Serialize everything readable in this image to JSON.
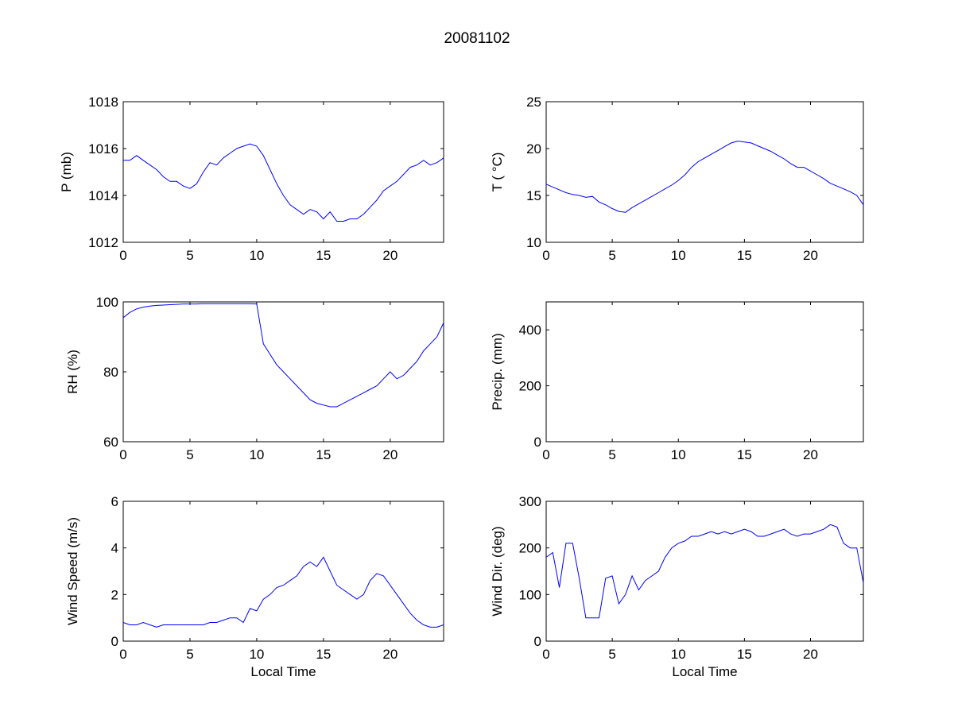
{
  "chart_data": {
    "type": "line",
    "title": "20081102",
    "line_color": "#0000ff",
    "subplots": [
      {
        "id": "pressure",
        "ylabel": "P (mb)",
        "xlabel": "",
        "xlim": [
          0,
          24
        ],
        "ylim": [
          1012,
          1018
        ],
        "xticks": [
          0,
          5,
          10,
          15,
          20
        ],
        "yticks": [
          1012,
          1014,
          1016,
          1018
        ],
        "x_step": 0.5,
        "values": [
          1015.5,
          1015.5,
          1015.7,
          1015.5,
          1015.3,
          1015.1,
          1014.8,
          1014.6,
          1014.6,
          1014.4,
          1014.3,
          1014.5,
          1015.0,
          1015.4,
          1015.3,
          1015.6,
          1015.8,
          1016.0,
          1016.1,
          1016.2,
          1016.1,
          1015.7,
          1015.1,
          1014.5,
          1014.0,
          1013.6,
          1013.4,
          1013.2,
          1013.4,
          1013.3,
          1013.0,
          1013.3,
          1012.9,
          1012.9,
          1013.0,
          1013.0,
          1013.2,
          1013.5,
          1013.8,
          1014.2,
          1014.4,
          1014.6,
          1014.9,
          1015.2,
          1015.3,
          1015.5,
          1015.3,
          1015.4,
          1015.6
        ]
      },
      {
        "id": "temperature",
        "ylabel": "T ( °C)",
        "xlabel": "",
        "xlim": [
          0,
          24
        ],
        "ylim": [
          10,
          25
        ],
        "xticks": [
          0,
          5,
          10,
          15,
          20
        ],
        "yticks": [
          10,
          15,
          20,
          25
        ],
        "x_step": 0.5,
        "values": [
          16.2,
          15.9,
          15.6,
          15.3,
          15.1,
          15.0,
          14.8,
          14.9,
          14.3,
          14.0,
          13.6,
          13.3,
          13.2,
          13.7,
          14.1,
          14.5,
          14.9,
          15.3,
          15.7,
          16.1,
          16.6,
          17.2,
          18.0,
          18.6,
          19.0,
          19.4,
          19.8,
          20.2,
          20.6,
          20.8,
          20.7,
          20.6,
          20.3,
          20.0,
          19.7,
          19.3,
          18.9,
          18.4,
          18.0,
          18.0,
          17.6,
          17.2,
          16.8,
          16.3,
          16.0,
          15.7,
          15.4,
          15.0,
          14.0
        ]
      },
      {
        "id": "humidity",
        "ylabel": "RH (%)",
        "xlabel": "",
        "xlim": [
          0,
          24
        ],
        "ylim": [
          60,
          100
        ],
        "xticks": [
          0,
          5,
          10,
          15,
          20
        ],
        "yticks": [
          60,
          80,
          100
        ],
        "x_step": 0.5,
        "values": [
          95.5,
          97,
          98,
          98.5,
          98.8,
          99,
          99.1,
          99.2,
          99.3,
          99.4,
          99.4,
          99.4,
          99.5,
          99.5,
          99.5,
          99.5,
          99.5,
          99.5,
          99.5,
          99.5,
          99.4,
          88,
          85,
          82,
          80,
          78,
          76,
          74,
          72,
          71,
          70.5,
          70,
          70,
          71,
          72,
          73,
          74,
          75,
          76,
          78,
          80,
          78,
          79,
          81,
          83,
          86,
          88,
          90,
          94
        ]
      },
      {
        "id": "precipitation",
        "ylabel": "Precip. (mm)",
        "xlabel": "",
        "xlim": [
          0,
          24
        ],
        "ylim": [
          0,
          500
        ],
        "xticks": [
          0,
          5,
          10,
          15,
          20
        ],
        "yticks": [
          0,
          200,
          400
        ],
        "x_step": 0.5,
        "values": []
      },
      {
        "id": "wind-speed",
        "ylabel": "Wind Speed (m/s)",
        "xlabel": "Local Time",
        "xlim": [
          0,
          24
        ],
        "ylim": [
          0,
          6
        ],
        "xticks": [
          0,
          5,
          10,
          15,
          20
        ],
        "yticks": [
          0,
          2,
          4,
          6
        ],
        "x_step": 0.5,
        "values": [
          0.8,
          0.7,
          0.7,
          0.8,
          0.7,
          0.6,
          0.7,
          0.7,
          0.7,
          0.7,
          0.7,
          0.7,
          0.7,
          0.8,
          0.8,
          0.9,
          1.0,
          1.0,
          0.8,
          1.4,
          1.3,
          1.8,
          2.0,
          2.3,
          2.4,
          2.6,
          2.8,
          3.2,
          3.4,
          3.2,
          3.6,
          3.0,
          2.4,
          2.2,
          2.0,
          1.8,
          2.0,
          2.6,
          2.9,
          2.8,
          2.4,
          2.0,
          1.6,
          1.2,
          0.9,
          0.7,
          0.6,
          0.6,
          0.7
        ]
      },
      {
        "id": "wind-direction",
        "ylabel": "Wind Dir. (deg)",
        "xlabel": "Local Time",
        "xlim": [
          0,
          24
        ],
        "ylim": [
          0,
          300
        ],
        "xticks": [
          0,
          5,
          10,
          15,
          20
        ],
        "yticks": [
          0,
          100,
          200,
          300
        ],
        "x_step": 0.5,
        "values": [
          180,
          190,
          115,
          210,
          210,
          135,
          50,
          50,
          50,
          135,
          140,
          80,
          100,
          140,
          110,
          130,
          140,
          150,
          180,
          200,
          210,
          215,
          225,
          225,
          230,
          235,
          230,
          235,
          230,
          235,
          240,
          235,
          225,
          225,
          230,
          235,
          240,
          230,
          225,
          230,
          230,
          235,
          240,
          250,
          245,
          210,
          200,
          200,
          125
        ]
      }
    ]
  }
}
